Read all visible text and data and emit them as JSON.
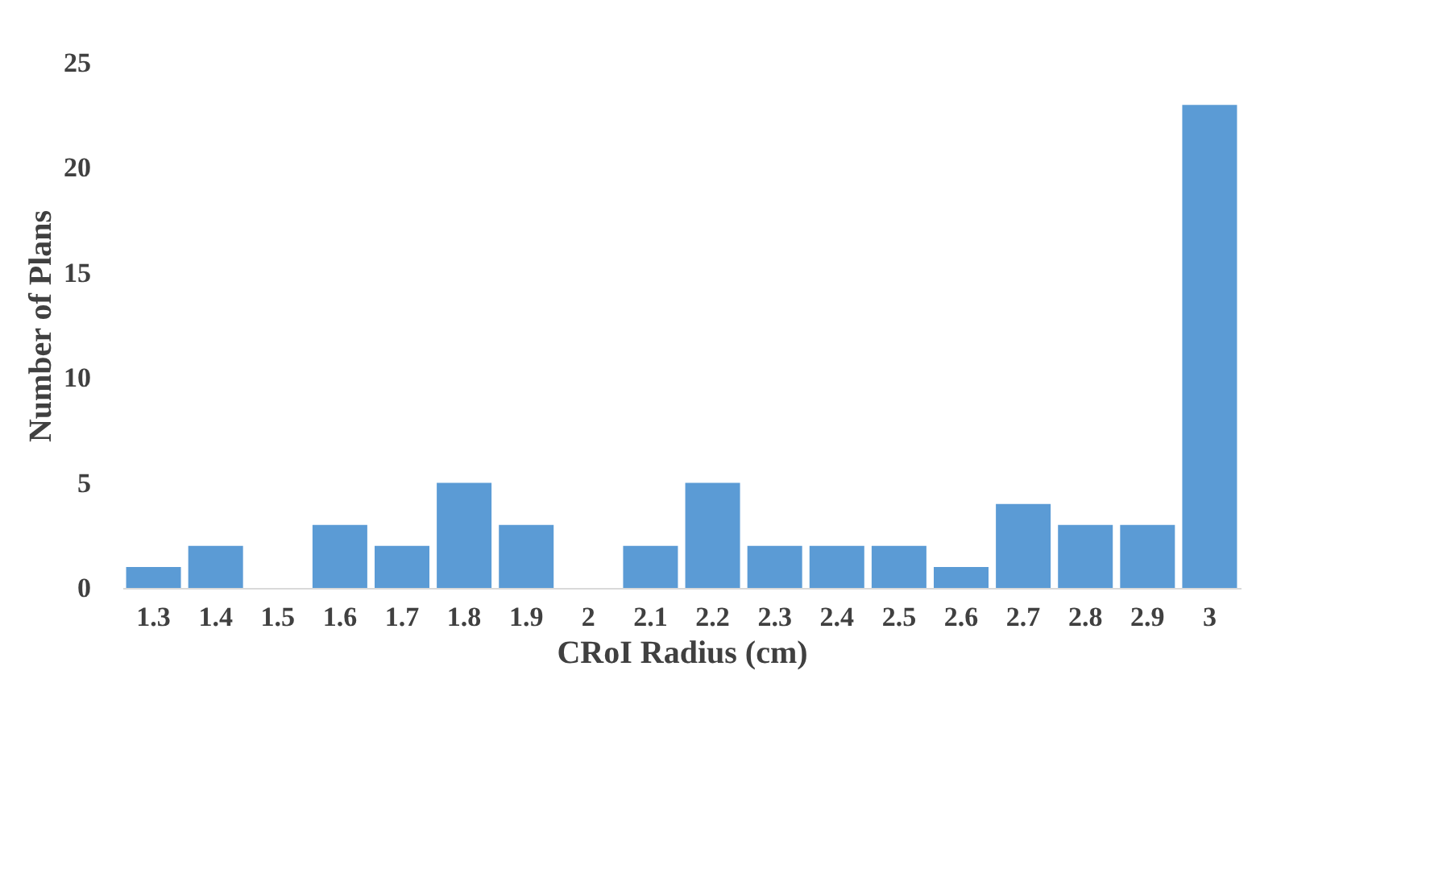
{
  "chart_data": {
    "type": "bar",
    "xlabel": "CRoI Radius (cm)",
    "ylabel": "Number of Plans",
    "categories": [
      "1.3",
      "1.4",
      "1.5",
      "1.6",
      "1.7",
      "1.8",
      "1.9",
      "2",
      "2.1",
      "2.2",
      "2.3",
      "2.4",
      "2.5",
      "2.6",
      "2.7",
      "2.8",
      "2.9",
      "3"
    ],
    "values": [
      1,
      2,
      0,
      3,
      2,
      5,
      3,
      0,
      2,
      5,
      2,
      2,
      2,
      1,
      4,
      3,
      3,
      23
    ],
    "color": "#5b9bd5",
    "ylim": [
      0,
      25
    ],
    "yticks": [
      0,
      5,
      10,
      15,
      20,
      25
    ],
    "grid": false
  }
}
